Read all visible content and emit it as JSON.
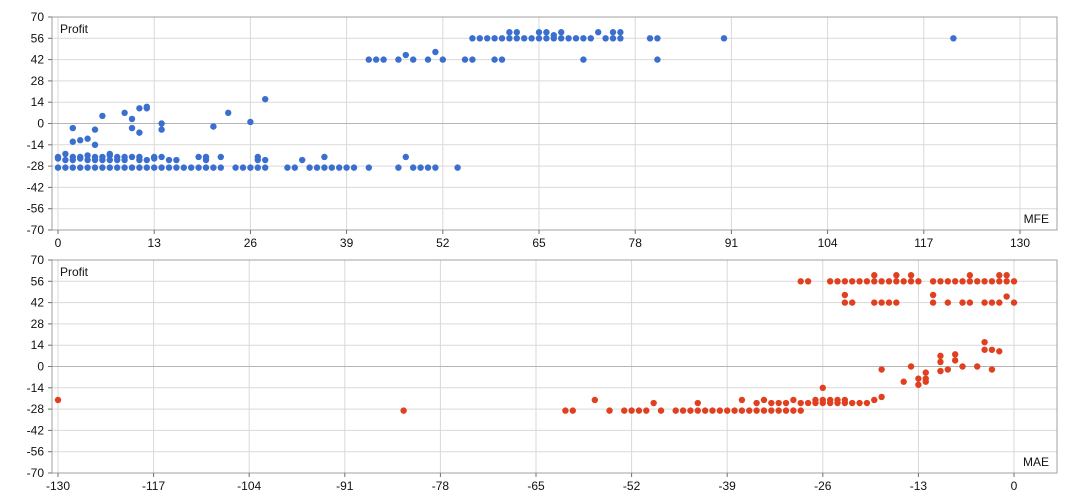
{
  "chart_data": [
    {
      "type": "scatter",
      "ylabel": "Profit",
      "xlabel": "MFE",
      "xlim": [
        0,
        130
      ],
      "ylim": [
        -70,
        70
      ],
      "x_ticks": [
        0,
        13,
        26,
        39,
        52,
        65,
        78,
        91,
        104,
        117,
        130
      ],
      "y_ticks": [
        70,
        56,
        42,
        28,
        14,
        0,
        -14,
        -28,
        -42,
        -56,
        -70
      ],
      "grid": true,
      "color": "#3a6fcf",
      "series": [
        {
          "points": [
            [
              0,
              -29
            ],
            [
              0,
              -23
            ],
            [
              0,
              -22
            ],
            [
              1,
              -29
            ],
            [
              1,
              -24
            ],
            [
              1,
              -20
            ],
            [
              2,
              -29
            ],
            [
              2,
              -24
            ],
            [
              2,
              -22
            ],
            [
              2,
              -3
            ],
            [
              2,
              -12
            ],
            [
              3,
              -29
            ],
            [
              3,
              -23
            ],
            [
              3,
              -22
            ],
            [
              3,
              -11
            ],
            [
              4,
              -29
            ],
            [
              4,
              -24
            ],
            [
              4,
              -21
            ],
            [
              4,
              -10
            ],
            [
              5,
              -29
            ],
            [
              5,
              -24
            ],
            [
              5,
              -22
            ],
            [
              5,
              -4
            ],
            [
              5,
              -14
            ],
            [
              6,
              -29
            ],
            [
              6,
              -24
            ],
            [
              6,
              -22
            ],
            [
              6,
              5
            ],
            [
              7,
              -29
            ],
            [
              7,
              -24
            ],
            [
              7,
              -20
            ],
            [
              7,
              -21
            ],
            [
              8,
              -29
            ],
            [
              8,
              -24
            ],
            [
              8,
              -22
            ],
            [
              9,
              -29
            ],
            [
              9,
              -24
            ],
            [
              9,
              -22
            ],
            [
              9,
              7
            ],
            [
              10,
              -29
            ],
            [
              10,
              -22
            ],
            [
              10,
              -3
            ],
            [
              10,
              3
            ],
            [
              11,
              -29
            ],
            [
              11,
              -24
            ],
            [
              11,
              -22
            ],
            [
              11,
              -6
            ],
            [
              11,
              10
            ],
            [
              12,
              -29
            ],
            [
              12,
              -24
            ],
            [
              12,
              10
            ],
            [
              12,
              11
            ],
            [
              13,
              -29
            ],
            [
              13,
              -23
            ],
            [
              13,
              -22
            ],
            [
              14,
              -29
            ],
            [
              14,
              -22
            ],
            [
              14,
              -4
            ],
            [
              14,
              0
            ],
            [
              15,
              -29
            ],
            [
              15,
              -24
            ],
            [
              16,
              -29
            ],
            [
              16,
              -24
            ],
            [
              17,
              -29
            ],
            [
              18,
              -29
            ],
            [
              19,
              -29
            ],
            [
              19,
              -22
            ],
            [
              20,
              -29
            ],
            [
              20,
              -24
            ],
            [
              20,
              -22
            ],
            [
              21,
              -29
            ],
            [
              21,
              -2
            ],
            [
              22,
              -29
            ],
            [
              22,
              -22
            ],
            [
              23,
              7
            ],
            [
              24,
              -29
            ],
            [
              25,
              -29
            ],
            [
              26,
              -29
            ],
            [
              26,
              1
            ],
            [
              27,
              -29
            ],
            [
              27,
              -24
            ],
            [
              27,
              -22
            ],
            [
              28,
              -29
            ],
            [
              28,
              -24
            ],
            [
              28,
              16
            ],
            [
              31,
              -29
            ],
            [
              32,
              -29
            ],
            [
              33,
              -24
            ],
            [
              34,
              -29
            ],
            [
              35,
              -29
            ],
            [
              36,
              -22
            ],
            [
              36,
              -29
            ],
            [
              37,
              -29
            ],
            [
              38,
              -29
            ],
            [
              39,
              -29
            ],
            [
              40,
              -29
            ],
            [
              42,
              -29
            ],
            [
              42,
              42
            ],
            [
              43,
              42
            ],
            [
              44,
              42
            ],
            [
              46,
              -29
            ],
            [
              46,
              42
            ],
            [
              47,
              -22
            ],
            [
              47,
              45
            ],
            [
              48,
              42
            ],
            [
              48,
              -29
            ],
            [
              49,
              -29
            ],
            [
              50,
              -29
            ],
            [
              50,
              42
            ],
            [
              51,
              47
            ],
            [
              51,
              -29
            ],
            [
              52,
              42
            ],
            [
              54,
              -29
            ],
            [
              55,
              42
            ],
            [
              56,
              42
            ],
            [
              56,
              56
            ],
            [
              57,
              56
            ],
            [
              58,
              56
            ],
            [
              59,
              56
            ],
            [
              59,
              42
            ],
            [
              60,
              56
            ],
            [
              60,
              42
            ],
            [
              61,
              56
            ],
            [
              61,
              60
            ],
            [
              62,
              56
            ],
            [
              62,
              60
            ],
            [
              63,
              56
            ],
            [
              64,
              56
            ],
            [
              65,
              56
            ],
            [
              65,
              60
            ],
            [
              66,
              56
            ],
            [
              66,
              60
            ],
            [
              67,
              56
            ],
            [
              67,
              58
            ],
            [
              68,
              56
            ],
            [
              68,
              60
            ],
            [
              69,
              56
            ],
            [
              70,
              56
            ],
            [
              71,
              56
            ],
            [
              71,
              42
            ],
            [
              72,
              56
            ],
            [
              73,
              60
            ],
            [
              74,
              56
            ],
            [
              75,
              56
            ],
            [
              75,
              60
            ],
            [
              76,
              56
            ],
            [
              76,
              60
            ],
            [
              80,
              56
            ],
            [
              81,
              56
            ],
            [
              81,
              42
            ],
            [
              90,
              56
            ],
            [
              121,
              56
            ]
          ]
        }
      ]
    },
    {
      "type": "scatter",
      "ylabel": "Profit",
      "xlabel": "MAE",
      "xlim": [
        -130,
        0
      ],
      "ylim": [
        -70,
        70
      ],
      "x_ticks": [
        -130,
        -117,
        -104,
        -91,
        -78,
        -65,
        -52,
        -39,
        -26,
        -13,
        0
      ],
      "y_ticks": [
        70,
        56,
        42,
        28,
        14,
        0,
        -14,
        -28,
        -42,
        -56,
        -70
      ],
      "grid": true,
      "color": "#e04020",
      "series": [
        {
          "points": [
            [
              -130,
              -22
            ],
            [
              -83,
              -29
            ],
            [
              -61,
              -29
            ],
            [
              -60,
              -29
            ],
            [
              -57,
              -22
            ],
            [
              -55,
              -29
            ],
            [
              -53,
              -29
            ],
            [
              -52,
              -29
            ],
            [
              -51,
              -29
            ],
            [
              -50,
              -29
            ],
            [
              -49,
              -24
            ],
            [
              -48,
              -29
            ],
            [
              -46,
              -29
            ],
            [
              -45,
              -29
            ],
            [
              -44,
              -29
            ],
            [
              -43,
              -29
            ],
            [
              -43,
              -24
            ],
            [
              -42,
              -29
            ],
            [
              -41,
              -29
            ],
            [
              -40,
              -29
            ],
            [
              -39,
              -29
            ],
            [
              -38,
              -29
            ],
            [
              -37,
              -29
            ],
            [
              -37,
              -22
            ],
            [
              -36,
              -29
            ],
            [
              -35,
              -29
            ],
            [
              -35,
              -24
            ],
            [
              -34,
              -29
            ],
            [
              -34,
              -22
            ],
            [
              -33,
              -29
            ],
            [
              -33,
              -24
            ],
            [
              -32,
              -29
            ],
            [
              -32,
              -24
            ],
            [
              -31,
              -29
            ],
            [
              -31,
              -24
            ],
            [
              -30,
              -29
            ],
            [
              -30,
              -22
            ],
            [
              -29,
              -29
            ],
            [
              -29,
              -24
            ],
            [
              -29,
              56
            ],
            [
              -28,
              -24
            ],
            [
              -28,
              56
            ],
            [
              -27,
              -24
            ],
            [
              -27,
              -22
            ],
            [
              -26,
              -24
            ],
            [
              -26,
              -22
            ],
            [
              -26,
              -14
            ],
            [
              -25,
              -24
            ],
            [
              -25,
              -22
            ],
            [
              -25,
              56
            ],
            [
              -24,
              -24
            ],
            [
              -24,
              -22
            ],
            [
              -24,
              56
            ],
            [
              -23,
              -24
            ],
            [
              -23,
              -22
            ],
            [
              -23,
              56
            ],
            [
              -23,
              42
            ],
            [
              -23,
              47
            ],
            [
              -22,
              -24
            ],
            [
              -22,
              56
            ],
            [
              -22,
              42
            ],
            [
              -21,
              -24
            ],
            [
              -21,
              56
            ],
            [
              -20,
              -24
            ],
            [
              -20,
              56
            ],
            [
              -19,
              -22
            ],
            [
              -19,
              56
            ],
            [
              -19,
              42
            ],
            [
              -19,
              60
            ],
            [
              -18,
              -20
            ],
            [
              -18,
              56
            ],
            [
              -18,
              42
            ],
            [
              -18,
              -2
            ],
            [
              -17,
              56
            ],
            [
              -17,
              42
            ],
            [
              -16,
              56
            ],
            [
              -16,
              42
            ],
            [
              -16,
              60
            ],
            [
              -15,
              56
            ],
            [
              -15,
              -10
            ],
            [
              -14,
              56
            ],
            [
              -14,
              60
            ],
            [
              -14,
              0
            ],
            [
              -13,
              -12
            ],
            [
              -13,
              56
            ],
            [
              -13,
              -8
            ],
            [
              -12,
              -10
            ],
            [
              -12,
              -4
            ],
            [
              -12,
              -8
            ],
            [
              -11,
              56
            ],
            [
              -11,
              42
            ],
            [
              -11,
              47
            ],
            [
              -10,
              3
            ],
            [
              -10,
              7
            ],
            [
              -10,
              56
            ],
            [
              -10,
              -3
            ],
            [
              -9,
              56
            ],
            [
              -9,
              42
            ],
            [
              -9,
              -2
            ],
            [
              -8,
              56
            ],
            [
              -8,
              4
            ],
            [
              -8,
              8
            ],
            [
              -7,
              56
            ],
            [
              -7,
              42
            ],
            [
              -7,
              0
            ],
            [
              -6,
              56
            ],
            [
              -6,
              60
            ],
            [
              -6,
              42
            ],
            [
              -5,
              56
            ],
            [
              -5,
              0
            ],
            [
              -4,
              56
            ],
            [
              -4,
              42
            ],
            [
              -4,
              16
            ],
            [
              -4,
              11
            ],
            [
              -3,
              56
            ],
            [
              -3,
              42
            ],
            [
              -3,
              11
            ],
            [
              -3,
              -2
            ],
            [
              -2,
              56
            ],
            [
              -2,
              60
            ],
            [
              -2,
              42
            ],
            [
              -2,
              10
            ],
            [
              -1,
              56
            ],
            [
              -1,
              60
            ],
            [
              -1,
              46
            ],
            [
              0,
              56
            ],
            [
              0,
              42
            ]
          ]
        }
      ]
    }
  ]
}
